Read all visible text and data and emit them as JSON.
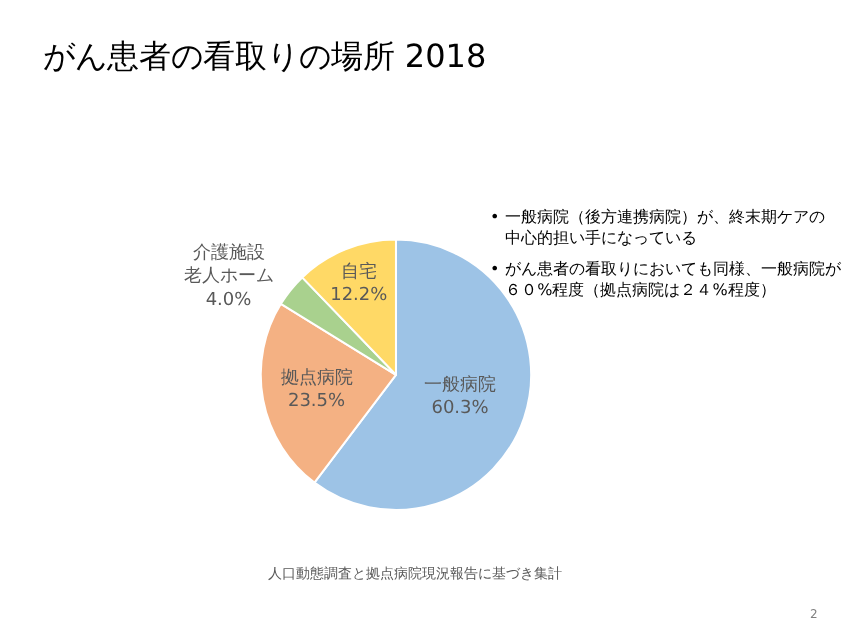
{
  "chart_data": {
    "type": "pie",
    "title": "がん患者の看取りの場所 2018",
    "categories": [
      "一般病院",
      "拠点病院",
      "介護施設老人ホーム",
      "自宅"
    ],
    "value_labels": [
      "60.3%",
      "23.5%",
      "4.0%",
      "12.2%"
    ],
    "values": [
      60.3,
      23.5,
      4.0,
      12.2
    ],
    "colors": [
      "#9dc3e6",
      "#f4b183",
      "#a9d18e",
      "#ffd966"
    ],
    "legend": false,
    "annotations": [
      "• 一般病院（後方連携病院）が、終末期ケアの中心的担い手になっている",
      "• がん患者の看取りにおいても同様、一般病院が６０%程度（拠点病院は２４%程度）",
      "人口動態調査と拠点病院現況報告に基づき集計",
      "2"
    ]
  }
}
